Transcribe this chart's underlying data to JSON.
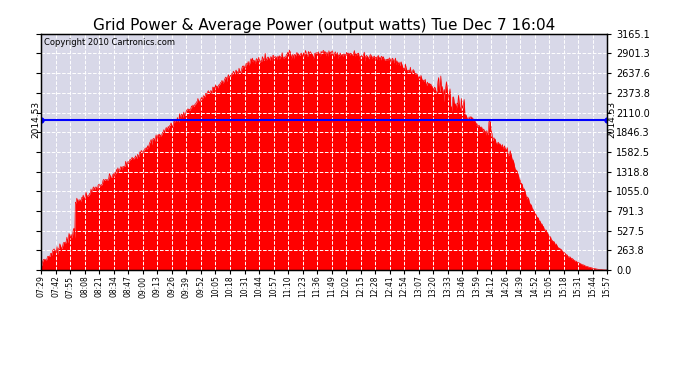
{
  "title": "Grid Power & Average Power (output watts) Tue Dec 7 16:04",
  "copyright": "Copyright 2010 Cartronics.com",
  "yticks_right": [
    0.0,
    263.8,
    527.5,
    791.3,
    1055.0,
    1318.8,
    1582.5,
    1846.3,
    2110.0,
    2373.8,
    2637.6,
    2901.3,
    3165.1
  ],
  "ymax": 3165.1,
  "ymin": 0.0,
  "average_line_y": 2014.53,
  "average_label": "2014.53",
  "fill_color": "#ff0000",
  "line_color": "#0000ff",
  "bg_color": "#ffffff",
  "plot_bg_color": "#d8d8e8",
  "title_fontsize": 11,
  "x_labels": [
    "07:29",
    "07:42",
    "07:55",
    "08:08",
    "08:21",
    "08:34",
    "08:47",
    "09:00",
    "09:13",
    "09:26",
    "09:39",
    "09:52",
    "10:05",
    "10:18",
    "10:31",
    "10:44",
    "10:57",
    "11:10",
    "11:23",
    "11:36",
    "11:49",
    "12:02",
    "12:15",
    "12:28",
    "12:41",
    "12:54",
    "13:07",
    "13:20",
    "13:33",
    "13:46",
    "13:59",
    "14:12",
    "14:26",
    "14:39",
    "14:52",
    "15:05",
    "15:18",
    "15:31",
    "15:44",
    "15:57"
  ]
}
